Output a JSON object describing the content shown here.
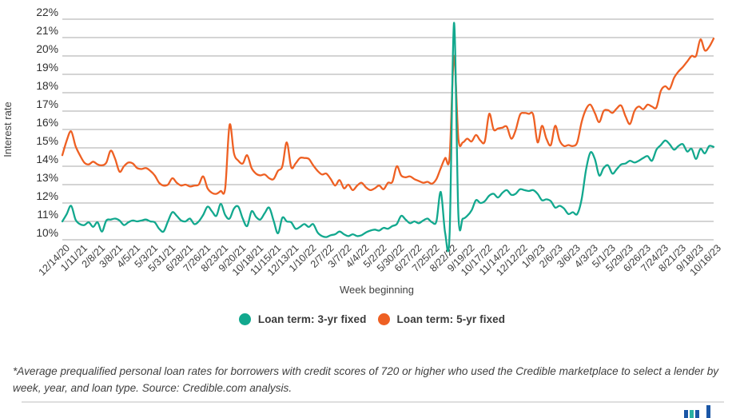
{
  "chart_data": {
    "type": "line",
    "title": "",
    "xlabel": "Week beginning",
    "ylabel": "Interest rate",
    "ylim": [
      10,
      22
    ],
    "grid": true,
    "legend_position": "bottom",
    "y_tick_labels": [
      "22%",
      "21%",
      "20%",
      "19%",
      "18%",
      "17%",
      "16%",
      "15%",
      "14%",
      "13%",
      "12%",
      "11%",
      "10%"
    ],
    "x_tick_every": 4,
    "x_tick_labels": [
      "12/14/20",
      "1/11/21",
      "2/8/21",
      "3/8/21",
      "4/5/21",
      "5/3/21",
      "5/31/21",
      "6/28/21",
      "7/26/21",
      "8/23/21",
      "9/20/21",
      "10/18/21",
      "11/15/21",
      "12/13/21",
      "1/10/22",
      "2/7/22",
      "3/7/22",
      "4/4/22",
      "5/2/22",
      "5/30/22",
      "6/27/22",
      "7/25/22",
      "8/22/22",
      "9/19/22",
      "10/17/22",
      "11/14/22",
      "12/12/22",
      "1/9/23",
      "2/6/23",
      "3/6/23",
      "4/3/23",
      "5/1/23",
      "5/29/23",
      "6/26/23",
      "7/24/23",
      "8/21/23",
      "9/18/23",
      "10/16/23"
    ],
    "series": [
      {
        "name": "Loan term: 3-yr fixed",
        "slug": "3yr-fixed",
        "color": "#12a88e",
        "values": [
          11.0,
          11.4,
          11.85,
          11.1,
          10.85,
          10.8,
          10.95,
          10.7,
          10.95,
          10.45,
          11.05,
          11.1,
          11.15,
          11.05,
          10.8,
          10.95,
          11.05,
          11.0,
          11.05,
          11.1,
          11.0,
          10.95,
          10.6,
          10.45,
          11.0,
          11.5,
          11.3,
          11.05,
          11.0,
          11.15,
          10.85,
          11.0,
          11.35,
          11.8,
          11.55,
          11.3,
          11.95,
          11.35,
          11.15,
          11.7,
          11.8,
          11.15,
          10.75,
          11.55,
          11.25,
          11.1,
          11.45,
          11.75,
          11.05,
          10.35,
          11.2,
          11.0,
          10.95,
          10.6,
          10.7,
          10.85,
          10.7,
          10.85,
          10.4,
          10.2,
          10.15,
          10.25,
          10.3,
          10.45,
          10.3,
          10.2,
          10.3,
          10.2,
          10.25,
          10.4,
          10.5,
          10.55,
          10.5,
          10.65,
          10.6,
          10.75,
          10.85,
          11.3,
          11.1,
          10.9,
          11.0,
          10.9,
          11.05,
          11.15,
          10.95,
          11.0,
          12.6,
          10.35,
          10.3,
          21.8,
          11.35,
          11.15,
          11.3,
          11.6,
          12.15,
          12.0,
          12.1,
          12.4,
          12.5,
          12.3,
          12.55,
          12.7,
          12.45,
          12.5,
          12.75,
          12.7,
          12.65,
          12.7,
          12.5,
          12.15,
          12.2,
          12.1,
          11.75,
          11.85,
          11.7,
          11.4,
          11.5,
          11.4,
          12.2,
          13.8,
          14.75,
          14.4,
          13.5,
          13.9,
          14.05,
          13.6,
          13.85,
          14.1,
          14.15,
          14.3,
          14.2,
          14.3,
          14.45,
          14.55,
          14.3,
          14.9,
          15.15,
          15.4,
          15.2,
          14.9,
          15.1,
          15.2,
          14.8,
          14.95,
          14.4,
          14.95,
          14.7,
          15.1,
          15.05
        ]
      },
      {
        "name": "Loan term: 5-yr fixed",
        "slug": "5yr-fixed",
        "color": "#ee6023",
        "values": [
          14.6,
          15.4,
          15.9,
          15.1,
          14.6,
          14.2,
          14.1,
          14.25,
          14.1,
          14.05,
          14.2,
          14.85,
          14.4,
          13.7,
          14.0,
          14.2,
          14.15,
          13.9,
          13.85,
          13.9,
          13.75,
          13.5,
          13.1,
          12.95,
          13.0,
          13.35,
          13.1,
          12.95,
          13.0,
          12.9,
          12.95,
          13.0,
          13.45,
          12.8,
          12.55,
          12.5,
          12.65,
          12.8,
          16.25,
          14.7,
          14.3,
          14.15,
          14.6,
          13.9,
          13.6,
          13.5,
          13.55,
          13.35,
          13.3,
          13.75,
          14.0,
          15.3,
          13.95,
          14.15,
          14.45,
          14.45,
          14.4,
          14.05,
          13.75,
          13.55,
          13.6,
          13.3,
          12.95,
          13.25,
          12.8,
          13.0,
          12.7,
          12.95,
          13.1,
          12.85,
          12.7,
          12.8,
          12.95,
          12.75,
          13.1,
          13.15,
          14.0,
          13.5,
          13.4,
          13.45,
          13.3,
          13.2,
          13.1,
          13.15,
          13.05,
          13.3,
          13.9,
          14.45,
          14.5,
          20.0,
          15.5,
          15.3,
          15.5,
          15.35,
          15.7,
          15.4,
          15.35,
          16.85,
          16.0,
          16.05,
          16.1,
          16.15,
          15.5,
          15.95,
          16.8,
          16.9,
          16.85,
          16.8,
          15.3,
          16.2,
          15.5,
          15.15,
          16.2,
          15.4,
          15.1,
          15.15,
          15.1,
          15.3,
          16.4,
          17.1,
          17.35,
          16.9,
          16.4,
          17.0,
          17.05,
          16.9,
          17.15,
          17.3,
          16.7,
          16.3,
          17.0,
          17.25,
          17.1,
          17.35,
          17.25,
          17.2,
          18.1,
          18.35,
          18.2,
          18.8,
          19.15,
          19.4,
          19.7,
          20.0,
          20.0,
          20.9,
          20.3,
          20.5,
          20.95
        ]
      }
    ]
  },
  "footnote": {
    "text": "*Average prequalified personal loan rates for borrowers with credit scores of 720 or higher who used the Credible marketplace to select a lender by week, year, and loan type. Source: Credible.com analysis."
  },
  "colors": {
    "series_3yr": "#12a88e",
    "series_5yr": "#ee6023",
    "gridline": "#a9a9a9",
    "divider": "#dedede",
    "logo_navy": "#1b57a6",
    "logo_teal": "#27b0a2"
  }
}
